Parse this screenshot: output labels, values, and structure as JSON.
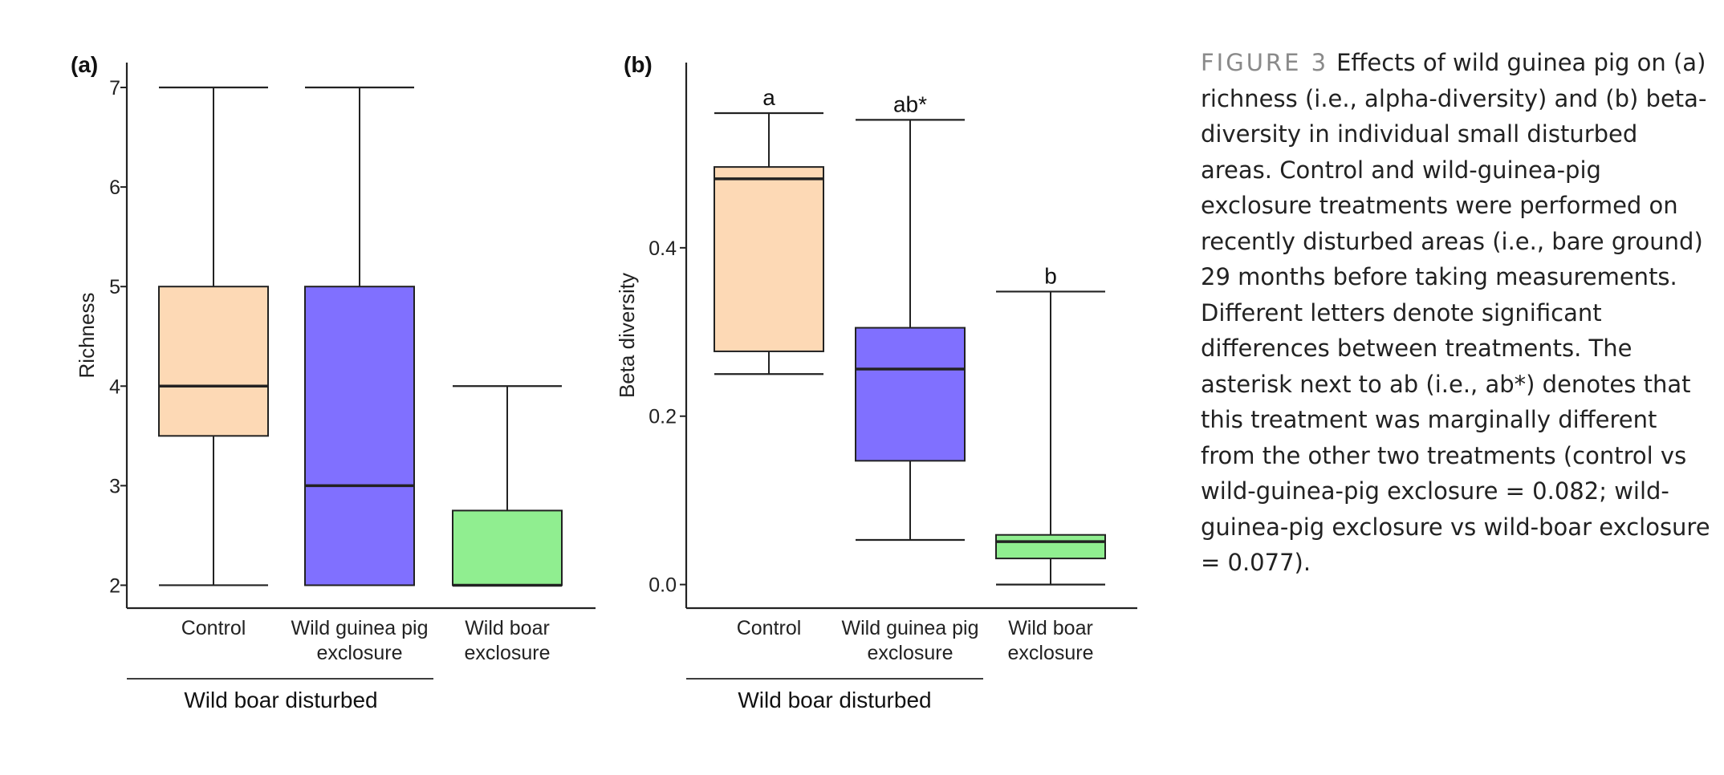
{
  "figure_caption": {
    "label": "FIGURE 3",
    "text": "Effects of wild guinea pig on (a) richness (i.e., alpha-diversity) and (b) beta-diversity in individual small disturbed areas. Control and wild-guinea-pig exclosure treatments were performed on recently disturbed areas (i.e., bare ground) 29 months before taking measurements. Different letters denote significant differences between treatments. The asterisk next to ab (i.e., ab*) denotes that this treatment was marginally different from the other two treatments (control vs wild-guinea-pig exclosure = 0.082; wild-guinea-pig exclosure vs wild-boar exclosure = 0.077)."
  },
  "colors": {
    "control": "#FDD9B5",
    "guinea": "#8070FF",
    "boar": "#90EE90",
    "line": "#222222"
  },
  "chart_data": [
    {
      "type": "box",
      "panel": "(a)",
      "ylabel": "Richness",
      "ylim": [
        1.77,
        7.25
      ],
      "yticks": [
        2,
        3,
        4,
        5,
        6,
        7
      ],
      "categories": [
        {
          "line1": "Control",
          "line2": ""
        },
        {
          "line1": "Wild guinea pig",
          "line2": "exclosure"
        },
        {
          "line1": "Wild boar",
          "line2": "exclosure"
        }
      ],
      "boxes": [
        {
          "min": 2,
          "q1": 3.5,
          "median": 4,
          "q3": 5,
          "max": 7,
          "color": "#FDD9B5"
        },
        {
          "min": 2,
          "q1": 2,
          "median": 3,
          "q3": 5,
          "max": 7,
          "color": "#8070FF"
        },
        {
          "min": 2,
          "q1": 2,
          "median": 2,
          "q3": 2.75,
          "max": 4,
          "color": "#90EE90"
        }
      ],
      "letters": [],
      "group_label": "Wild boar disturbed"
    },
    {
      "type": "box",
      "panel": "(b)",
      "ylabel": "Beta diversity",
      "ylim": [
        -0.028,
        0.62
      ],
      "yticks": [
        0.0,
        0.2,
        0.4
      ],
      "ytick_labels": [
        "0.0",
        "0.2",
        "0.4"
      ],
      "categories": [
        {
          "line1": "Control",
          "line2": ""
        },
        {
          "line1": "Wild guinea pig",
          "line2": "exclosure"
        },
        {
          "line1": "Wild boar",
          "line2": "exclosure"
        }
      ],
      "boxes": [
        {
          "min": 0.25,
          "q1": 0.277,
          "median": 0.482,
          "q3": 0.496,
          "max": 0.56,
          "color": "#FDD9B5"
        },
        {
          "min": 0.053,
          "q1": 0.147,
          "median": 0.256,
          "q3": 0.305,
          "max": 0.552,
          "color": "#8070FF"
        },
        {
          "min": 0.0,
          "q1": 0.031,
          "median": 0.051,
          "q3": 0.059,
          "max": 0.348,
          "color": "#90EE90"
        }
      ],
      "letters": [
        "a",
        "ab*",
        "b"
      ],
      "group_label": "Wild boar disturbed"
    }
  ]
}
